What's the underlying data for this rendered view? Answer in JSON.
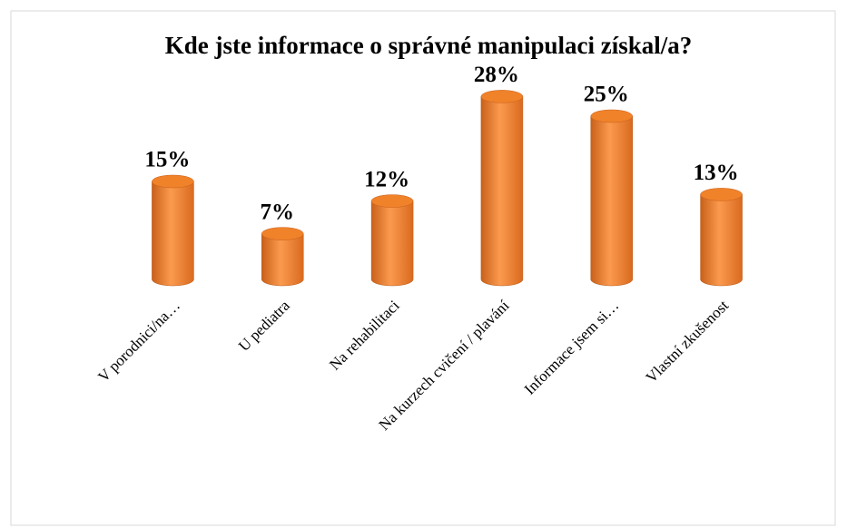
{
  "chart_data": {
    "type": "bar",
    "title": "Kde jste informace o správné manipulaci získal/a?",
    "categories": [
      "V porodnici/na…",
      "U pediatra",
      "Na rehabilitaci",
      "Na kurzech cvičení / plavání",
      "Informace jsem si…",
      "Vlastní zkušenost"
    ],
    "values": [
      15,
      7,
      12,
      28,
      25,
      13
    ],
    "value_labels": [
      "15%",
      "7%",
      "12%",
      "28%",
      "25%",
      "13%"
    ],
    "color": "#f0822a"
  }
}
